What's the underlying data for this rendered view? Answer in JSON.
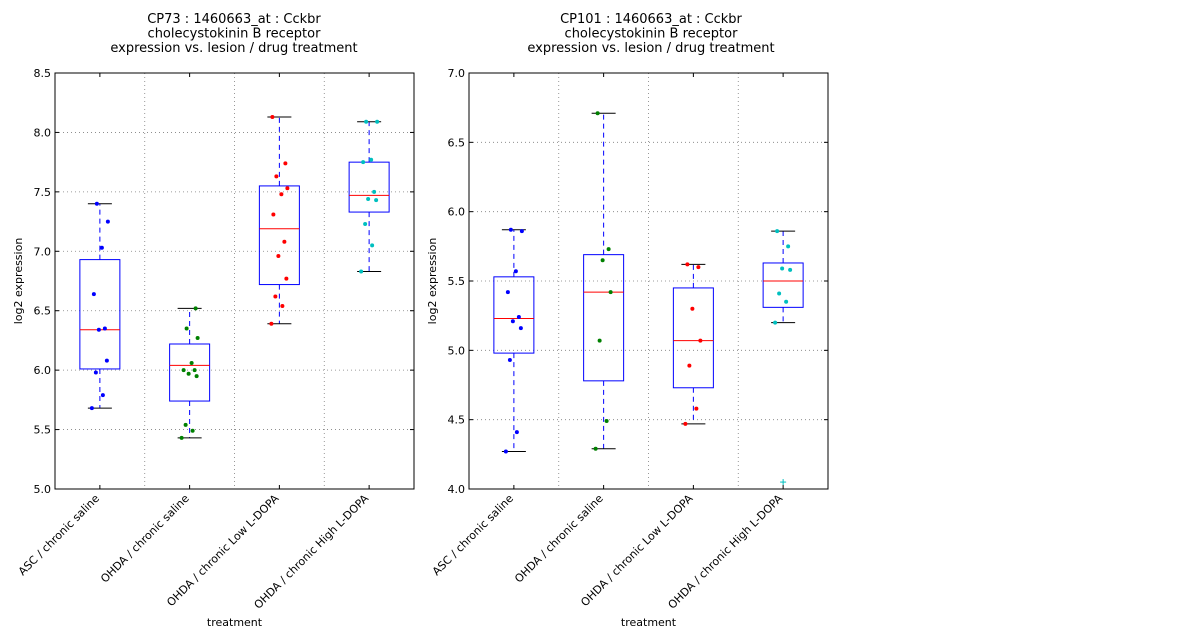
{
  "chart_data": [
    {
      "type": "box",
      "title_lines": [
        "CP73 : 1460663_at : Cckbr",
        "cholecystokinin B receptor",
        "expression vs. lesion / drug treatment"
      ],
      "xlabel": "treatment",
      "ylabel": "log2 expression",
      "ylim": [
        5.0,
        8.5
      ],
      "yticks": [
        "5.0",
        "5.5",
        "6.0",
        "6.5",
        "7.0",
        "7.5",
        "8.0",
        "8.5"
      ],
      "grid": true,
      "categories": [
        "ASC / chronic saline",
        "OHDA / chronic saline",
        "OHDA / chronic Low L-DOPA",
        "OHDA / chronic High L-DOPA"
      ],
      "boxes": [
        {
          "whislo": 5.68,
          "q1": 6.01,
          "med": 6.34,
          "q3": 6.93,
          "whishi": 7.4,
          "color": "#0000ff",
          "points": [
            5.68,
            5.79,
            5.98,
            6.08,
            6.34,
            6.35,
            6.64,
            7.03,
            7.25,
            7.4
          ]
        },
        {
          "whislo": 5.43,
          "q1": 5.74,
          "med": 6.04,
          "q3": 6.22,
          "whishi": 6.52,
          "color": "#008000",
          "points": [
            5.43,
            5.49,
            5.54,
            5.95,
            5.97,
            6.0,
            6.0,
            6.06,
            6.27,
            6.35,
            6.52
          ]
        },
        {
          "whislo": 6.39,
          "q1": 6.72,
          "med": 7.19,
          "q3": 7.55,
          "whishi": 8.13,
          "color": "#ff0000",
          "points": [
            6.39,
            6.54,
            6.62,
            6.77,
            6.96,
            7.08,
            7.31,
            7.48,
            7.53,
            7.63,
            7.74,
            8.13
          ]
        },
        {
          "whislo": 6.83,
          "q1": 7.33,
          "med": 7.47,
          "q3": 7.75,
          "whishi": 8.09,
          "color": "#00bfbf",
          "points": [
            6.83,
            7.05,
            7.23,
            7.43,
            7.44,
            7.5,
            7.75,
            7.77,
            8.09,
            8.09
          ]
        }
      ],
      "outliers": []
    },
    {
      "type": "box",
      "title_lines": [
        "CP101 : 1460663_at : Cckbr",
        "cholecystokinin B receptor",
        "expression vs. lesion / drug treatment"
      ],
      "xlabel": "treatment",
      "ylabel": "log2 expression",
      "ylim": [
        4.0,
        7.0
      ],
      "yticks": [
        "4.0",
        "4.5",
        "5.0",
        "5.5",
        "6.0",
        "6.5",
        "7.0"
      ],
      "grid": true,
      "categories": [
        "ASC / chronic saline",
        "OHDA / chronic saline",
        "OHDA / chronic Low L-DOPA",
        "OHDA / chronic High L-DOPA"
      ],
      "boxes": [
        {
          "whislo": 4.27,
          "q1": 4.98,
          "med": 5.23,
          "q3": 5.53,
          "whishi": 5.87,
          "color": "#0000ff",
          "points": [
            4.27,
            4.41,
            4.93,
            5.16,
            5.21,
            5.24,
            5.42,
            5.57,
            5.86,
            5.87
          ]
        },
        {
          "whislo": 4.29,
          "q1": 4.78,
          "med": 5.42,
          "q3": 5.69,
          "whishi": 6.71,
          "color": "#008000",
          "points": [
            4.29,
            4.49,
            5.07,
            5.42,
            5.65,
            5.73,
            6.71
          ]
        },
        {
          "whislo": 4.47,
          "q1": 4.73,
          "med": 5.07,
          "q3": 5.45,
          "whishi": 5.62,
          "color": "#ff0000",
          "points": [
            4.47,
            4.58,
            4.89,
            5.07,
            5.3,
            5.6,
            5.62
          ]
        },
        {
          "whislo": 5.2,
          "q1": 5.31,
          "med": 5.5,
          "q3": 5.63,
          "whishi": 5.86,
          "color": "#00bfbf",
          "points": [
            5.2,
            5.35,
            5.41,
            5.58,
            5.59,
            5.75,
            5.86
          ]
        }
      ],
      "outliers": [
        {
          "category_index": 3,
          "value": 4.05,
          "color": "#00bfbf"
        }
      ]
    }
  ]
}
